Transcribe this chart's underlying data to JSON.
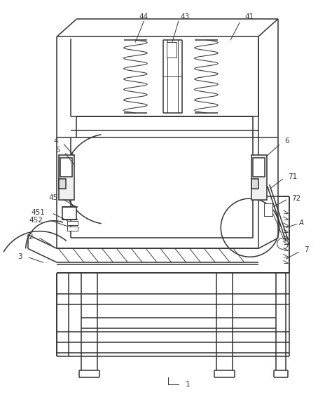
{
  "bg_color": "#ffffff",
  "lc": "#333333",
  "lw": 1.1,
  "lwt": 0.65,
  "fs": 7.5,
  "fig_w": 4.74,
  "fig_h": 5.66
}
